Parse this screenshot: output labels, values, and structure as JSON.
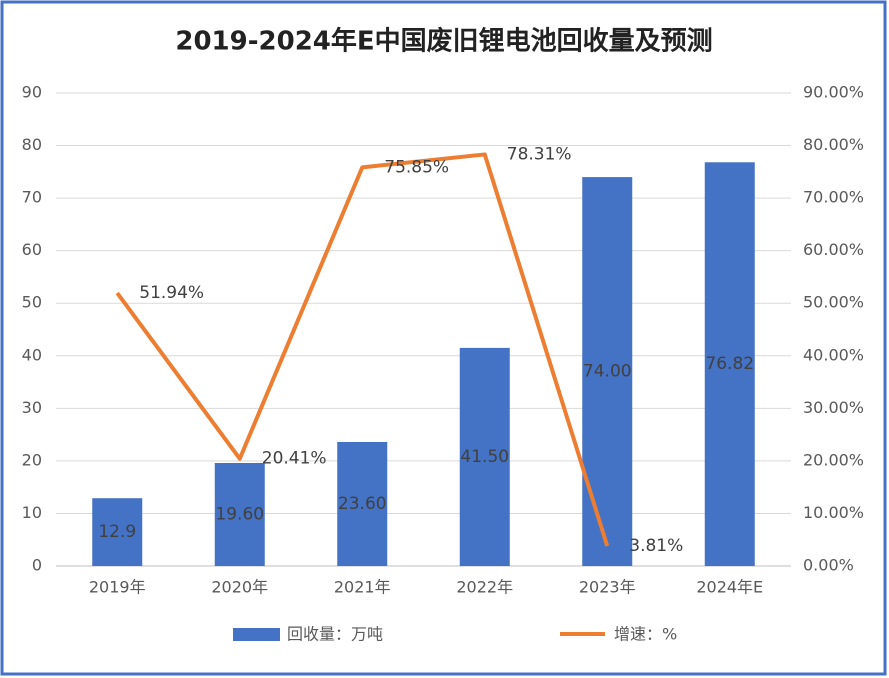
{
  "chart_data": {
    "type": "bar",
    "title": "2019-2024年E中国废旧锂电池回收量及预测",
    "categories": [
      "2019年",
      "2020年",
      "2021年",
      "2022年",
      "2023年",
      "2024年E"
    ],
    "series": [
      {
        "name": "回收量：万吨",
        "type": "bar",
        "color": "#4472c4",
        "values": [
          12.9,
          19.6,
          23.6,
          41.5,
          74.0,
          76.82
        ],
        "value_labels": [
          "12.9",
          "19.60",
          "23.60",
          "41.50",
          "74.00",
          "76.82"
        ]
      },
      {
        "name": "增速：%",
        "type": "line",
        "axis": "y2",
        "color": "#ed7d31",
        "values": [
          51.94,
          20.41,
          75.85,
          78.31,
          3.81,
          null
        ],
        "value_labels": [
          "51.94%",
          "20.41%",
          "75.85%",
          "78.31%",
          "3.81%",
          null
        ]
      }
    ],
    "ylim": [
      0,
      90
    ],
    "yticks": [
      0,
      10,
      20,
      30,
      40,
      50,
      60,
      70,
      80,
      90
    ],
    "y2lim": [
      0,
      90
    ],
    "y2ticks": [
      {
        "value": 0,
        "label": "0.00%"
      },
      {
        "value": 10,
        "label": "10.00%"
      },
      {
        "value": 20,
        "label": "20.00%"
      },
      {
        "value": 30,
        "label": "30.00%"
      },
      {
        "value": 40,
        "label": "40.00%"
      },
      {
        "value": 50,
        "label": "50.00%"
      },
      {
        "value": 60,
        "label": "60.00%"
      },
      {
        "value": 70,
        "label": "70.00%"
      },
      {
        "value": 80,
        "label": "80.00%"
      },
      {
        "value": 90,
        "label": "90.00%"
      }
    ],
    "grid": true,
    "legend": "bottom"
  }
}
